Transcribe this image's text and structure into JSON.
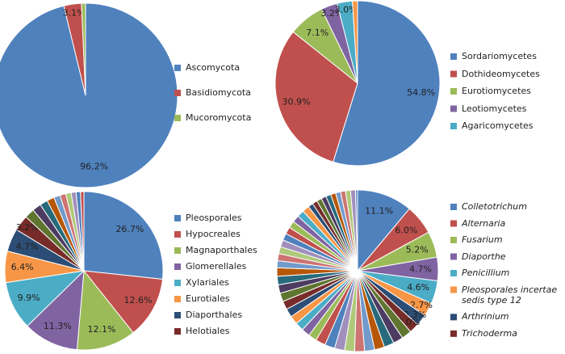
{
  "chart_data": [
    {
      "type": "pie",
      "categories": [
        "Ascomycota",
        "Basidiomycota",
        "Mucoromycota"
      ],
      "values": [
        96.2,
        3.1,
        0.7
      ],
      "value_labels": [
        "96.2%",
        "3.1%",
        null
      ],
      "colors": [
        "#4f81bd",
        "#c0504d",
        "#9bbb59"
      ]
    },
    {
      "type": "pie",
      "categories": [
        "Sordariomycetes",
        "Dothideomycetes",
        "Eurotiomycetes",
        "Leotiomycetes",
        "Agaricomycetes",
        null
      ],
      "values": [
        54.8,
        30.9,
        7.1,
        3.2,
        3.0,
        1.0
      ],
      "value_labels": [
        "54.8%",
        "30.9%",
        "7.1%",
        "3.2%",
        "3.0%",
        null
      ],
      "colors": [
        "#4f81bd",
        "#c0504d",
        "#9bbb59",
        "#8064a2",
        "#4bacc6",
        "#f79646"
      ]
    },
    {
      "type": "pie",
      "categories": [
        "Pleosporales",
        "Hypocreales",
        "Magnaporthales",
        "Glomerellales",
        "Xylariales",
        "Eurotiales",
        "Diaporthales",
        "Helotiales",
        null,
        null,
        null,
        null,
        null,
        null,
        null,
        null,
        null,
        null
      ],
      "values": [
        26.7,
        12.6,
        12.1,
        11.3,
        9.9,
        6.4,
        4.7,
        3.2,
        2.0,
        1.8,
        1.6,
        1.5,
        1.3,
        1.2,
        1.1,
        1.0,
        0.9,
        0.7
      ],
      "value_labels": [
        "26.7%",
        "12.6%",
        "12.1%",
        "11.3%",
        "9.9%",
        "6.4%",
        "4.7%",
        "3.2%",
        null,
        null,
        null,
        null,
        null,
        null,
        null,
        null,
        null,
        null
      ],
      "colors": [
        "#4f81bd",
        "#c0504d",
        "#9bbb59",
        "#8064a2",
        "#4bacc6",
        "#f79646",
        "#2c4d75",
        "#772c2a",
        "#5f7530",
        "#4d3b62",
        "#276a7c",
        "#b65708",
        "#729aca",
        "#cd7371",
        "#afc97a",
        "#a18fbc"
      ]
    },
    {
      "type": "pie",
      "font_style": "italic",
      "categories": [
        "Colletotrichum",
        "Alternaria",
        "Fusarium",
        "Diaporthe",
        "Penicillium",
        "Pleosporales incertae sedis type 12",
        "Arthrinium",
        "Trichoderma",
        null,
        null,
        null,
        null,
        null,
        null,
        null,
        null,
        null,
        null,
        null,
        null,
        null,
        null,
        null,
        null,
        null,
        null,
        null,
        null,
        null,
        null,
        null,
        null,
        null,
        null,
        null,
        null,
        null,
        null,
        null,
        null,
        null,
        null,
        null,
        null,
        null,
        null,
        null,
        null,
        null
      ],
      "values": [
        11.1,
        6.0,
        5.2,
        4.7,
        4.6,
        2.7,
        2.3,
        2.0,
        2.0,
        2.0,
        2.0,
        2.0,
        2.0,
        2.0,
        2.0,
        2.0,
        2.0,
        2.0,
        1.7,
        1.7,
        1.7,
        1.7,
        1.7,
        1.7,
        1.7,
        1.7,
        1.7,
        1.7,
        1.4,
        1.4,
        1.4,
        1.4,
        1.4,
        1.4,
        1.4,
        1.4,
        1.4,
        1.4,
        1.0,
        1.0,
        1.0,
        1.0,
        1.0,
        1.0,
        1.0,
        1.0,
        1.0,
        1.0,
        0.4
      ],
      "value_labels": [
        "11.1%",
        "6.0%",
        "5.2%",
        "4.7%",
        "4.6%",
        "2.7%",
        "2.3%",
        "2.0%",
        null,
        null,
        null,
        null,
        null,
        null,
        null,
        null,
        null,
        null,
        null,
        null,
        null,
        null,
        null,
        null,
        null,
        null,
        null,
        null,
        null,
        null,
        null,
        null,
        null,
        null,
        null,
        null,
        null,
        null,
        null,
        null,
        null,
        null,
        null,
        null,
        null,
        null,
        null,
        null,
        null
      ],
      "colors": [
        "#4f81bd",
        "#c0504d",
        "#9bbb59",
        "#8064a2",
        "#4bacc6",
        "#f79646",
        "#2c4d75",
        "#772c2a",
        "#5f7530",
        "#4d3b62",
        "#276a7c",
        "#b65708",
        "#729aca",
        "#cd7371",
        "#afc97a",
        "#a18fbc"
      ]
    }
  ]
}
